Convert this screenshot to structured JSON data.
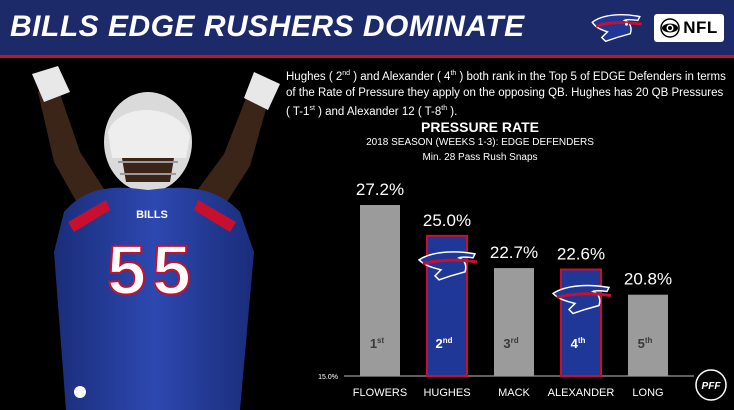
{
  "header": {
    "title": "BILLS EDGE RUSHERS DOMINATE",
    "nfl_label": "NFL"
  },
  "description": {
    "p1": "Hughes ( 2",
    "s1": "nd",
    "p2": " ) and Alexander ( 4",
    "s2": "th",
    "p3": " ) both rank in the Top 5 of EDGE Defenders in terms of the Rate of Pressure they apply on the opposing QB.  Hughes has 20 QB Pressures ( T-1",
    "s3": "st",
    "p4": " ) and Alexander 12 ( T-8",
    "s4": "th",
    "p5": " )."
  },
  "player": {
    "jersey_number": "55",
    "jersey_text": "BILLS"
  },
  "colors": {
    "navy": "#1c2a6a",
    "bills_blue": "#1f3796",
    "bills_red": "#c8102e",
    "gray_bar": "#9b9b9b"
  },
  "chart_data": {
    "type": "bar",
    "title": "PRESSURE RATE",
    "subtitle1": "2018 SEASON (WEEKS 1-3): EDGE DEFENDERS",
    "subtitle2": "Min. 28 Pass Rush Snaps",
    "categories": [
      "FLOWERS",
      "HUGHES",
      "MACK",
      "ALEXANDER",
      "LONG"
    ],
    "values": [
      27.2,
      25.0,
      22.7,
      22.6,
      20.8
    ],
    "value_labels": [
      "27.2%",
      "25.0%",
      "22.7%",
      "22.6%",
      "20.8%"
    ],
    "rank_numbers": [
      "1",
      "2",
      "3",
      "4",
      "5"
    ],
    "rank_suffixes": [
      "st",
      "nd",
      "rd",
      "th",
      "th"
    ],
    "highlighted": [
      false,
      true,
      false,
      true,
      false
    ],
    "ymin_label": "15.0%",
    "ylim": [
      15,
      27.2
    ]
  }
}
